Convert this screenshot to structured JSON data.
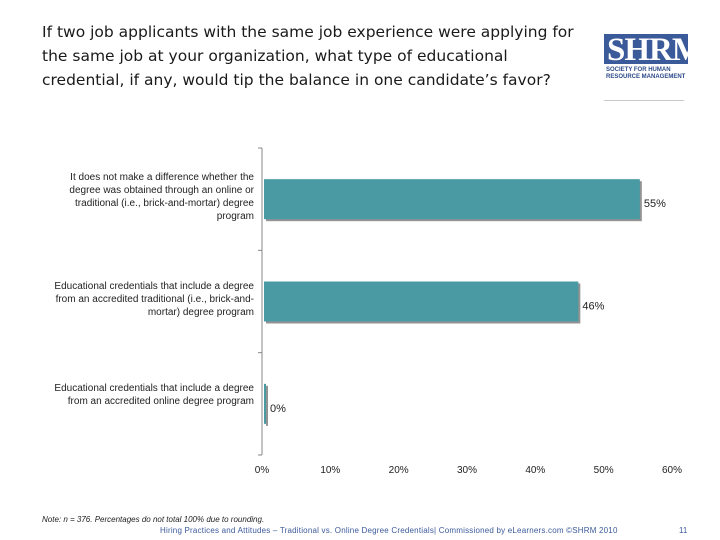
{
  "title": "If two job applicants with the same job experience were applying for the same job at your organization, what type of educational credential, if any, would tip the balance in one candidate’s favor?",
  "logo": {
    "mark": "SHRM",
    "line1": "SOCIETY FOR HUMAN",
    "line2": "RESOURCE MANAGEMENT"
  },
  "chart_data": {
    "type": "bar",
    "orientation": "horizontal",
    "categories": [
      "It does not make a difference whether the degree was obtained through an online or traditional (i.e., brick-and-mortar) degree program",
      "Educational credentials that include a degree from an accredited traditional (i.e., brick-and-mortar) degree program",
      "Educational credentials that include a degree from an accredited online degree program"
    ],
    "values": [
      55,
      46,
      0
    ],
    "value_labels": [
      "55%",
      "46%",
      "0%"
    ],
    "xlim": [
      0,
      60
    ],
    "ticks": [
      0,
      10,
      20,
      30,
      40,
      50,
      60
    ],
    "tick_labels": [
      "0%",
      "10%",
      "20%",
      "30%",
      "40%",
      "50%",
      "60%"
    ],
    "bar_color": "#4a9aa3",
    "grid": false
  },
  "note": "Note: n = 376. Percentages do not total 100% due to rounding.",
  "footer": "Hiring Practices and Attitudes – Traditional vs. Online Degree Credentials| Commissioned by eLearners.com ©SHRM 2010",
  "page_number": "11"
}
